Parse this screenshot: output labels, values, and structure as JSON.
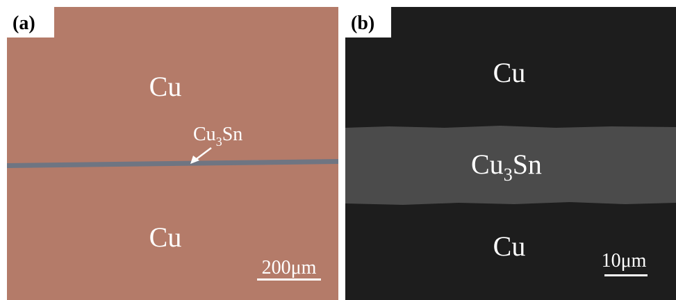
{
  "panels": [
    {
      "label": "(a)",
      "top_phase": "Cu",
      "middle_phase": {
        "base": "Cu",
        "subscript": "3",
        "suffix": "Sn"
      },
      "bottom_phase": "Cu",
      "scale_bar": "200μm"
    },
    {
      "label": "(b)",
      "top_phase": "Cu",
      "middle_phase": {
        "base": "Cu",
        "subscript": "3",
        "suffix": "Sn"
      },
      "bottom_phase": "Cu",
      "scale_bar": "10μm"
    }
  ]
}
